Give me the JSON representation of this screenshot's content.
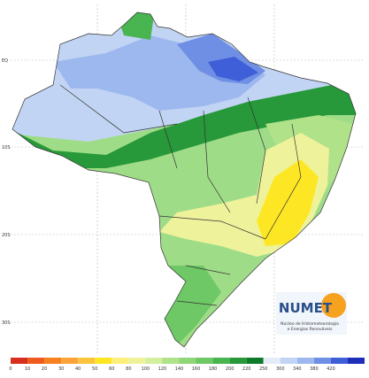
{
  "map": {
    "lat_labels": [
      "EQ",
      "10S",
      "20S",
      "30S"
    ],
    "logo": {
      "title": "NUMET",
      "subtitle_1": "Núcleo de Hidrometeorologia",
      "subtitle_2": "e Energias Renováveis"
    },
    "legend": {
      "colors": [
        "#d7301f",
        "#ef5a1e",
        "#f7801f",
        "#fba33a",
        "#fcc43c",
        "#fde725",
        "#fdf07a",
        "#eef29a",
        "#d2ef9f",
        "#b0e28a",
        "#8fd679",
        "#6ec865",
        "#48b550",
        "#27993a",
        "#0f7a2a",
        "#e4ecf8",
        "#c2d4f3",
        "#9db8ee",
        "#6e8fe4",
        "#3f5fd8",
        "#1d2fb8"
      ],
      "labels": [
        0,
        10,
        20,
        30,
        40,
        50,
        60,
        80,
        100,
        120,
        140,
        160,
        180,
        200,
        220,
        250,
        300,
        340,
        380,
        420
      ]
    }
  }
}
